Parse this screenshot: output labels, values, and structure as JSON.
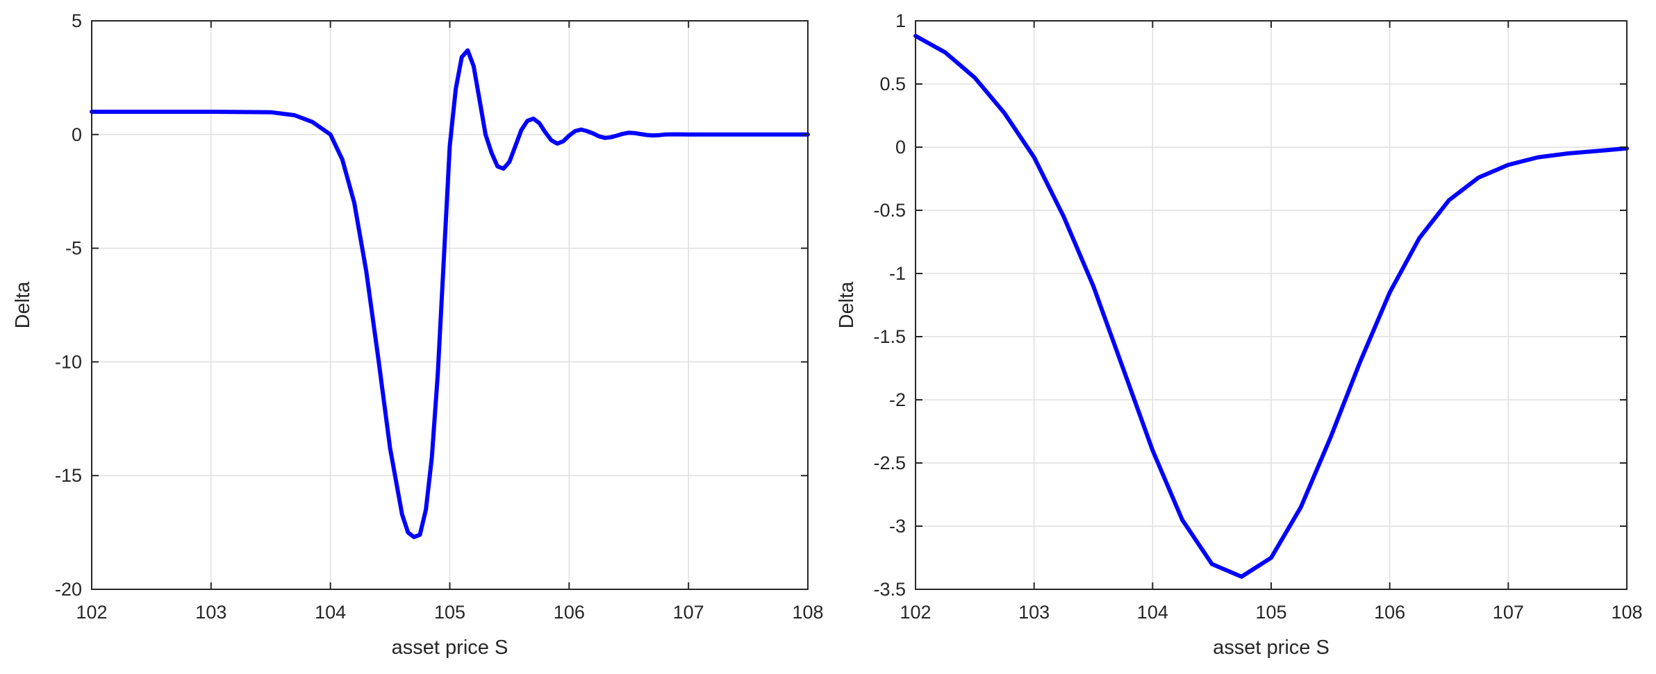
{
  "chart_data": [
    {
      "type": "line",
      "xlabel": "asset price S",
      "ylabel": "Delta",
      "xlim": [
        102,
        108
      ],
      "ylim": [
        -20,
        5
      ],
      "xticks": [
        102,
        103,
        104,
        105,
        106,
        107,
        108
      ],
      "yticks": [
        -20,
        -15,
        -10,
        -5,
        0,
        5
      ],
      "xtick_labels": [
        "102",
        "103",
        "104",
        "105",
        "106",
        "107",
        "108"
      ],
      "ytick_labels": [
        "-20",
        "-15",
        "-10",
        "-5",
        "0",
        "5"
      ],
      "grid": true,
      "line_color": "#0000ff",
      "series": [
        {
          "x": [
            102,
            102.5,
            103,
            103.5,
            103.7,
            103.85,
            104,
            104.1,
            104.2,
            104.3,
            104.4,
            104.5,
            104.6,
            104.65,
            104.7,
            104.75,
            104.8,
            104.85,
            104.9,
            104.95,
            105,
            105.05,
            105.1,
            105.15,
            105.2,
            105.25,
            105.3,
            105.35,
            105.4,
            105.45,
            105.5,
            105.55,
            105.6,
            105.65,
            105.7,
            105.75,
            105.8,
            105.85,
            105.9,
            105.95,
            106,
            106.05,
            106.1,
            106.15,
            106.2,
            106.25,
            106.3,
            106.35,
            106.4,
            106.45,
            106.5,
            106.55,
            106.6,
            106.65,
            106.7,
            106.75,
            106.8,
            106.9,
            107,
            107.1,
            107.2,
            107.3,
            107.5,
            107.7,
            108
          ],
          "y": [
            1,
            1,
            1,
            0.98,
            0.85,
            0.55,
            0,
            -1.1,
            -3,
            -6,
            -9.8,
            -13.8,
            -16.7,
            -17.5,
            -17.7,
            -17.6,
            -16.5,
            -14.2,
            -10.5,
            -5.5,
            -0.5,
            2,
            3.4,
            3.7,
            3,
            1.5,
            0,
            -0.8,
            -1.4,
            -1.5,
            -1.2,
            -0.5,
            0.2,
            0.6,
            0.7,
            0.5,
            0.1,
            -0.25,
            -0.4,
            -0.3,
            -0.05,
            0.15,
            0.22,
            0.15,
            0.05,
            -0.08,
            -0.15,
            -0.12,
            -0.05,
            0.03,
            0.08,
            0.06,
            0.02,
            -0.02,
            -0.04,
            -0.03,
            0,
            0.01,
            0,
            0,
            0,
            0,
            0,
            0,
            0
          ]
        }
      ]
    },
    {
      "type": "line",
      "xlabel": "asset price S",
      "ylabel": "Delta",
      "xlim": [
        102,
        108
      ],
      "ylim": [
        -3.5,
        1
      ],
      "xticks": [
        102,
        103,
        104,
        105,
        106,
        107,
        108
      ],
      "yticks": [
        -3.5,
        -3,
        -2.5,
        -2,
        -1.5,
        -1,
        -0.5,
        0,
        0.5,
        1
      ],
      "xtick_labels": [
        "102",
        "103",
        "104",
        "105",
        "106",
        "107",
        "108"
      ],
      "ytick_labels": [
        "-3.5",
        "-3",
        "-2.5",
        "-2",
        "-1.5",
        "-1",
        "-0.5",
        "0",
        "0.5",
        "1"
      ],
      "grid": true,
      "line_color": "#0000ff",
      "series": [
        {
          "x": [
            102,
            102.25,
            102.5,
            102.75,
            103,
            103.25,
            103.5,
            103.75,
            104,
            104.25,
            104.5,
            104.75,
            105,
            105.25,
            105.5,
            105.75,
            106,
            106.25,
            106.5,
            106.75,
            107,
            107.25,
            107.5,
            107.75,
            108
          ],
          "y": [
            0.88,
            0.75,
            0.55,
            0.27,
            -0.08,
            -0.55,
            -1.1,
            -1.75,
            -2.4,
            -2.95,
            -3.3,
            -3.4,
            -3.25,
            -2.85,
            -2.3,
            -1.7,
            -1.15,
            -0.72,
            -0.42,
            -0.24,
            -0.14,
            -0.08,
            -0.05,
            -0.03,
            -0.01
          ]
        }
      ]
    }
  ]
}
